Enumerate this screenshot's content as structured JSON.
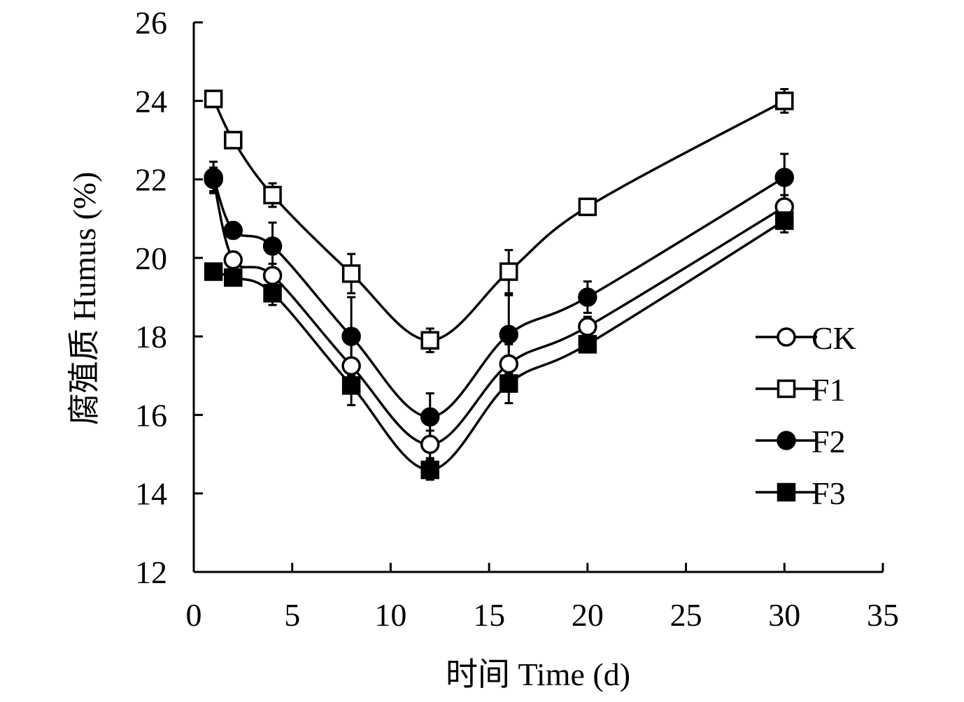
{
  "chart_data": {
    "type": "line",
    "title": "",
    "xlabel": "时间 Time (d)",
    "ylabel": "腐殖质 Humus (%)",
    "xlim": [
      0,
      35
    ],
    "ylim": [
      12,
      26
    ],
    "xticks": [
      0,
      5,
      10,
      15,
      20,
      25,
      30,
      35
    ],
    "yticks": [
      12,
      14,
      16,
      18,
      20,
      22,
      24,
      26
    ],
    "x": [
      1,
      2,
      4,
      8,
      12,
      16,
      20,
      30
    ],
    "grid": false,
    "legend_position": "right",
    "line_color": "#000000",
    "series": [
      {
        "name": "CK",
        "marker": "open-circle",
        "values": [
          22.0,
          19.95,
          19.55,
          17.25,
          15.25,
          17.3,
          18.25,
          21.3
        ],
        "errors": [
          0.3,
          0.2,
          0.3,
          0.6,
          0.35,
          0.5,
          0.25,
          0.3
        ]
      },
      {
        "name": "F1",
        "marker": "open-square",
        "values": [
          24.05,
          23.0,
          21.6,
          19.6,
          17.9,
          19.65,
          21.3,
          24.0
        ],
        "errors": [
          0.2,
          0.2,
          0.3,
          0.5,
          0.3,
          0.55,
          0.2,
          0.3
        ]
      },
      {
        "name": "F2",
        "marker": "filled-circle",
        "values": [
          22.05,
          20.7,
          20.3,
          18.0,
          15.95,
          18.05,
          19.0,
          22.05
        ],
        "errors": [
          0.4,
          0.2,
          0.6,
          1.0,
          0.6,
          1.0,
          0.4,
          0.6
        ]
      },
      {
        "name": "F3",
        "marker": "filled-square",
        "values": [
          19.65,
          19.5,
          19.1,
          16.75,
          14.6,
          16.8,
          17.8,
          20.95
        ],
        "errors": [
          0.2,
          0.15,
          0.3,
          0.5,
          0.25,
          0.5,
          0.2,
          0.3
        ]
      }
    ]
  }
}
